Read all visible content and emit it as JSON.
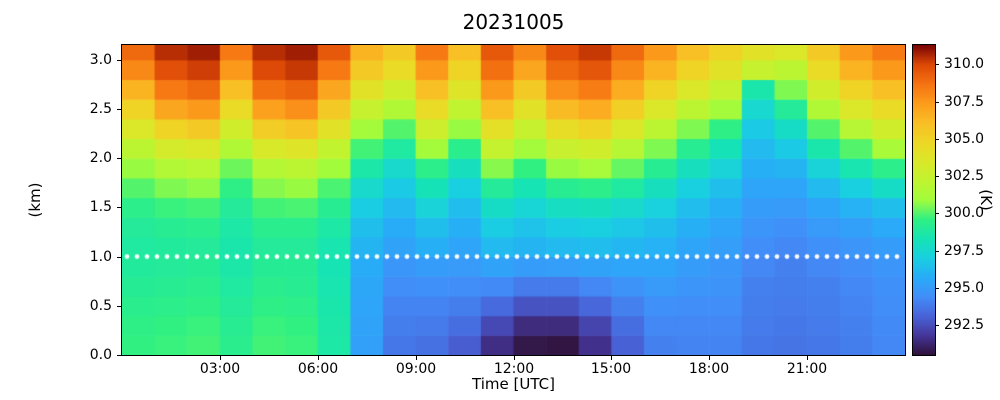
{
  "title": "20231005",
  "axes": {
    "xlabel": "Time [UTC]",
    "ylabel": "(km)",
    "x_ticks": [
      "03:00",
      "06:00",
      "09:00",
      "12:00",
      "15:00",
      "18:00",
      "21:00"
    ],
    "x_tick_hours": [
      3,
      6,
      9,
      12,
      15,
      18,
      21
    ],
    "y_ticks": [
      "3.0",
      "2.5",
      "2.0",
      "1.5",
      "1.0",
      "0.5",
      "0.0"
    ],
    "y_tick_values": [
      3.0,
      2.5,
      2.0,
      1.5,
      1.0,
      0.5,
      0.0
    ],
    "xlim_hours": [
      0,
      24
    ],
    "ylim_km": [
      0,
      3.15
    ]
  },
  "colorbar": {
    "label": "(K)",
    "colormap": "turbo",
    "vmin": 290.5,
    "vmax": 311.3,
    "ticks": [
      "310.0",
      "307.5",
      "305.0",
      "302.5",
      "300.0",
      "297.5",
      "295.0",
      "292.5"
    ],
    "tick_values": [
      310.0,
      307.5,
      305.0,
      302.5,
      300.0,
      297.5,
      295.0,
      292.5
    ],
    "stops": [
      [
        0.0,
        48,
        18,
        59
      ],
      [
        0.0625,
        69,
        55,
        155
      ],
      [
        0.125,
        72,
        100,
        217
      ],
      [
        0.1875,
        66,
        142,
        249
      ],
      [
        0.25,
        40,
        172,
        248
      ],
      [
        0.3125,
        25,
        208,
        224
      ],
      [
        0.375,
        22,
        228,
        180
      ],
      [
        0.4375,
        48,
        240,
        130
      ],
      [
        0.5,
        162,
        252,
        60
      ],
      [
        0.5625,
        192,
        244,
        48
      ],
      [
        0.625,
        218,
        232,
        41
      ],
      [
        0.6875,
        237,
        215,
        37
      ],
      [
        0.75,
        249,
        190,
        37
      ],
      [
        0.8125,
        252,
        156,
        28
      ],
      [
        0.875,
        245,
        115,
        18
      ],
      [
        0.9375,
        221,
        73,
        6
      ],
      [
        1.0,
        122,
        4,
        3
      ]
    ]
  },
  "marker_line": {
    "altitude_km": 1.0,
    "color": "#ffffff",
    "style": "dotted"
  },
  "chart_data": {
    "type": "heatmap",
    "title": "20231005",
    "xlabel": "Time [UTC]",
    "ylabel": "(km)",
    "value_label": "(K)",
    "x_hours": [
      0,
      1,
      2,
      3,
      4,
      5,
      6,
      7,
      8,
      9,
      10,
      11,
      12,
      13,
      14,
      15,
      16,
      17,
      18,
      19,
      20,
      21,
      22,
      23
    ],
    "y_max_km": 3.15,
    "row_height_km": 0.2,
    "altitudes_km": [
      0.1,
      0.3,
      0.5,
      0.7,
      0.9,
      1.1,
      1.3,
      1.5,
      1.7,
      1.9,
      2.1,
      2.3,
      2.5,
      2.7,
      2.9,
      3.1
    ],
    "values_K": [
      [
        299.6,
        299.7,
        299.8,
        299.3,
        299.8,
        299.7,
        298.7,
        295.2,
        293.7,
        293.5,
        292.9,
        291.5,
        290.7,
        290.6,
        291.6,
        293.0,
        294.0,
        294.1,
        294.1,
        293.7,
        293.6,
        293.7,
        293.9,
        294.2
      ],
      [
        299.5,
        299.6,
        299.7,
        299.2,
        299.7,
        299.6,
        298.6,
        295.3,
        293.9,
        293.8,
        293.4,
        292.3,
        291.4,
        291.4,
        292.2,
        293.4,
        294.2,
        294.2,
        294.2,
        293.8,
        293.7,
        293.8,
        294.0,
        294.3
      ],
      [
        299.3,
        299.4,
        299.5,
        299.0,
        299.5,
        299.4,
        298.5,
        295.4,
        294.1,
        294.1,
        293.9,
        293.3,
        292.6,
        292.6,
        293.2,
        294.0,
        294.5,
        294.4,
        294.4,
        293.9,
        293.8,
        293.9,
        294.1,
        294.4
      ],
      [
        299.1,
        299.2,
        299.3,
        298.8,
        299.3,
        299.2,
        298.4,
        295.5,
        294.4,
        294.5,
        294.4,
        294.3,
        293.8,
        293.8,
        294.2,
        294.6,
        294.9,
        294.7,
        294.6,
        294.0,
        293.9,
        294.0,
        294.2,
        294.5
      ],
      [
        298.9,
        299.0,
        299.1,
        298.6,
        299.1,
        299.1,
        298.3,
        295.7,
        294.8,
        295.0,
        294.9,
        295.3,
        295.0,
        295.1,
        295.3,
        295.4,
        295.4,
        295.0,
        294.8,
        294.2,
        294.0,
        294.2,
        294.4,
        294.7
      ],
      [
        298.8,
        298.9,
        299.0,
        298.5,
        299.0,
        299.0,
        298.4,
        296.0,
        295.3,
        295.8,
        295.4,
        296.2,
        296.0,
        296.2,
        296.3,
        296.1,
        295.9,
        295.4,
        295.1,
        294.4,
        294.2,
        294.5,
        294.7,
        295.0
      ],
      [
        299.0,
        299.2,
        299.3,
        298.7,
        299.3,
        299.3,
        298.7,
        296.4,
        295.7,
        296.4,
        295.8,
        296.9,
        296.5,
        296.9,
        297.0,
        296.7,
        296.4,
        295.8,
        295.4,
        294.7,
        294.5,
        294.9,
        295.2,
        295.6
      ],
      [
        299.4,
        299.7,
        299.8,
        299.0,
        299.8,
        299.9,
        299.2,
        296.9,
        296.2,
        297.2,
        296.3,
        297.8,
        297.3,
        297.9,
        298.0,
        297.6,
        297.1,
        296.3,
        295.8,
        295.0,
        294.9,
        295.4,
        295.9,
        296.4
      ],
      [
        300.0,
        300.5,
        300.7,
        299.5,
        300.6,
        300.8,
        299.9,
        297.6,
        296.8,
        298.2,
        297.0,
        299.0,
        298.3,
        299.2,
        299.4,
        298.8,
        298.0,
        297.0,
        296.4,
        295.4,
        295.4,
        296.2,
        297.0,
        297.8
      ],
      [
        300.8,
        301.6,
        301.9,
        300.3,
        301.7,
        302.0,
        300.9,
        298.6,
        297.6,
        299.4,
        298.0,
        300.6,
        299.6,
        300.8,
        301.1,
        300.2,
        299.2,
        298.0,
        297.2,
        295.8,
        296.0,
        297.2,
        298.4,
        299.4
      ],
      [
        302.0,
        303.2,
        303.6,
        301.5,
        303.4,
        303.8,
        302.3,
        299.8,
        298.8,
        301.0,
        299.3,
        302.4,
        301.0,
        302.6,
        303.0,
        301.8,
        300.5,
        299.2,
        298.2,
        296.2,
        296.8,
        298.5,
        300.0,
        301.2
      ],
      [
        303.5,
        305.0,
        305.5,
        303.0,
        305.3,
        305.8,
        304.0,
        301.0,
        300.0,
        302.8,
        300.8,
        304.2,
        302.5,
        304.4,
        305.0,
        303.6,
        302.0,
        300.5,
        299.5,
        296.8,
        297.8,
        300.0,
        301.8,
        303.0
      ],
      [
        305.0,
        307.0,
        307.5,
        304.5,
        307.2,
        307.8,
        305.5,
        302.5,
        301.5,
        304.5,
        302.2,
        306.0,
        304.0,
        306.2,
        306.8,
        305.2,
        303.5,
        302.0,
        301.0,
        297.5,
        299.0,
        301.5,
        303.5,
        304.5
      ],
      [
        306.5,
        308.5,
        309.0,
        306.0,
        308.8,
        309.2,
        307.0,
        304.0,
        303.0,
        306.0,
        303.8,
        307.5,
        305.5,
        307.8,
        308.4,
        306.8,
        305.0,
        303.5,
        302.5,
        298.5,
        300.5,
        303.0,
        305.0,
        306.0
      ],
      [
        308.0,
        309.8,
        310.2,
        307.5,
        310.0,
        310.3,
        308.5,
        305.5,
        304.5,
        307.5,
        305.0,
        308.8,
        307.0,
        309.0,
        309.6,
        308.0,
        306.5,
        305.0,
        304.0,
        302.5,
        302.0,
        304.5,
        306.5,
        307.5
      ],
      [
        309.0,
        310.5,
        310.8,
        308.5,
        310.5,
        310.8,
        309.5,
        306.5,
        305.5,
        308.5,
        306.0,
        309.5,
        308.0,
        309.8,
        310.3,
        309.0,
        307.5,
        306.0,
        305.0,
        304.0,
        303.5,
        305.5,
        307.5,
        308.5
      ]
    ]
  }
}
